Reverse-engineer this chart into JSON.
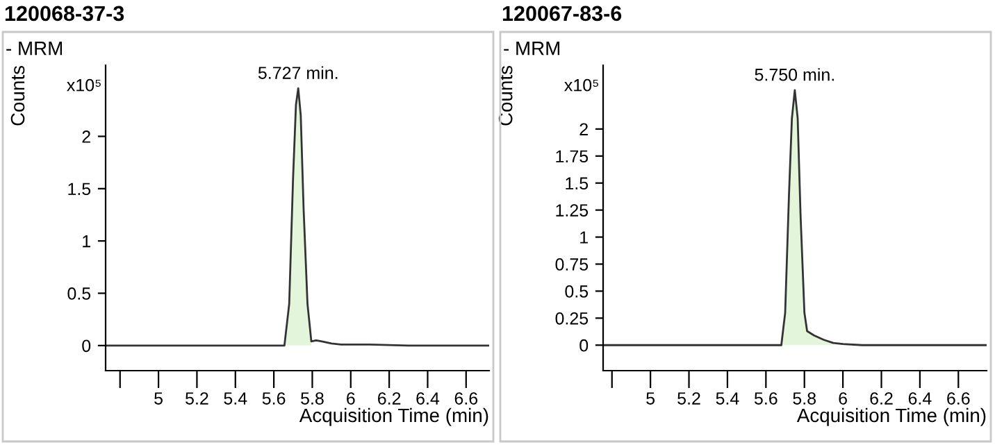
{
  "chart_data": [
    {
      "type": "line",
      "title": "120068-37-3",
      "subtitle": "- MRM",
      "xlabel": "Acquisition Time (min)",
      "ylabel": "Counts",
      "annotations": [
        "x10⁵",
        {
          "text": "5.727 min.",
          "x": 5.727,
          "y": 2.46
        }
      ],
      "x": [
        4.725,
        5.0,
        5.5,
        5.655,
        5.68,
        5.7,
        5.715,
        5.727,
        5.74,
        5.755,
        5.775,
        5.795,
        5.82,
        5.85,
        5.9,
        5.95,
        6.1,
        6.3,
        6.72
      ],
      "series": [
        {
          "type": "area",
          "color": "#e3f6dc",
          "x": [
            5.655,
            5.68,
            5.7,
            5.715,
            5.727,
            5.74,
            5.755,
            5.775,
            5.795
          ],
          "values": [
            0,
            0.4,
            1.6,
            2.3,
            2.46,
            2.2,
            1.3,
            0.4,
            0.04
          ]
        },
        {
          "color": "#333333",
          "values": [
            0,
            0,
            0,
            0,
            0.4,
            1.6,
            2.3,
            2.46,
            2.2,
            1.3,
            0.4,
            0.04,
            0.05,
            0.04,
            0.02,
            0.01,
            0.01,
            0,
            0
          ]
        }
      ],
      "xlim": [
        4.725,
        6.72
      ],
      "ylim": [
        -0.24,
        2.68
      ],
      "xticks": [
        {
          "value": 4.8,
          "label": null
        },
        5,
        5.2,
        5.4,
        5.6,
        5.8,
        6,
        6.2,
        6.4,
        6.6
      ],
      "yticks": [
        0,
        0.5,
        1,
        1.5,
        2
      ],
      "grid": false
    },
    {
      "type": "line",
      "title": "120067-83-6",
      "subtitle": "- MRM",
      "xlabel": "Acquisition Time (min)",
      "ylabel": "Counts",
      "annotations": [
        "x10⁵",
        {
          "text": "5.750 min.",
          "x": 5.75,
          "y": 2.36
        }
      ],
      "x": [
        4.754,
        5.0,
        5.5,
        5.68,
        5.7,
        5.72,
        5.735,
        5.75,
        5.765,
        5.78,
        5.8,
        5.814,
        5.85,
        5.9,
        5.95,
        6.0,
        6.1,
        6.5,
        6.747
      ],
      "series": [
        {
          "type": "area",
          "color": "#e3f6dc",
          "x": [
            5.68,
            5.7,
            5.72,
            5.735,
            5.75,
            5.765,
            5.78,
            5.8,
            5.814,
            5.85,
            5.9,
            5.95
          ],
          "values": [
            0,
            0.3,
            1.4,
            2.1,
            2.36,
            2.1,
            1.2,
            0.3,
            0.13,
            0.09,
            0.05,
            0.02
          ]
        },
        {
          "color": "#333333",
          "values": [
            0,
            0,
            0,
            0,
            0.3,
            1.4,
            2.1,
            2.36,
            2.1,
            1.2,
            0.3,
            0.13,
            0.09,
            0.05,
            0.02,
            0.01,
            0,
            0,
            0
          ]
        }
      ],
      "xlim": [
        4.754,
        6.747
      ],
      "ylim": [
        -0.236,
        2.59
      ],
      "xticks": [
        {
          "value": 4.8,
          "label": null
        },
        5,
        5.2,
        5.4,
        5.6,
        5.8,
        6,
        6.2,
        6.4,
        6.6
      ],
      "yticks": [
        0,
        0.25,
        0.5,
        0.75,
        1,
        1.25,
        1.5,
        1.75,
        2
      ],
      "grid": false
    }
  ]
}
